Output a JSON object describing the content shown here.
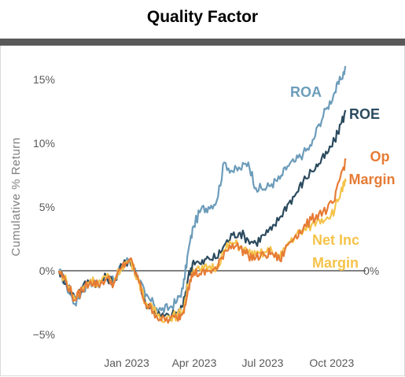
{
  "title": "Quality Factor",
  "chart_data": {
    "type": "line",
    "title": "Quality Factor",
    "ylabel": "Cumulative % Return",
    "xlabel": "",
    "x_start": "2022-10-03",
    "x_end": "2023-10-20",
    "x_ticks": [
      {
        "date": "2023-01-01",
        "label": "Jan 2023"
      },
      {
        "date": "2023-04-01",
        "label": "Apr 2023"
      },
      {
        "date": "2023-07-01",
        "label": "Jul 2023"
      },
      {
        "date": "2023-10-01",
        "label": "Oct 2023"
      }
    ],
    "y_ticks": [
      {
        "value": -5,
        "label": "−5%"
      },
      {
        "value": 0,
        "label": "0%"
      },
      {
        "value": 5,
        "label": "5%"
      },
      {
        "value": 10,
        "label": "10%"
      },
      {
        "value": 15,
        "label": "15%"
      }
    ],
    "ylim": [
      -5.6,
      16.5
    ],
    "zero_line_label": "0%",
    "grid": false,
    "series": [
      {
        "name": "ROA",
        "color": "#6c9cba",
        "points": [
          [
            "2022-10-03",
            0
          ],
          [
            "2022-10-13",
            -1.2
          ],
          [
            "2022-10-24",
            -2.6
          ],
          [
            "2022-11-03",
            -1.6
          ],
          [
            "2022-11-14",
            -0.8
          ],
          [
            "2022-11-24",
            -1.2
          ],
          [
            "2022-12-05",
            -0.4
          ],
          [
            "2022-12-15",
            -0.9
          ],
          [
            "2022-12-26",
            0.5
          ],
          [
            "2023-01-05",
            0.9
          ],
          [
            "2023-01-16",
            -0.4
          ],
          [
            "2023-01-26",
            -2.0
          ],
          [
            "2023-02-06",
            -2.6
          ],
          [
            "2023-02-16",
            -3.1
          ],
          [
            "2023-02-27",
            -2.9
          ],
          [
            "2023-03-09",
            -2.4
          ],
          [
            "2023-03-17",
            -1.4
          ],
          [
            "2023-03-24",
            1.5
          ],
          [
            "2023-03-31",
            3.5
          ],
          [
            "2023-04-10",
            4.8
          ],
          [
            "2023-04-20",
            5.0
          ],
          [
            "2023-05-01",
            5.5
          ],
          [
            "2023-05-11",
            8.5
          ],
          [
            "2023-05-22",
            7.8
          ],
          [
            "2023-06-01",
            8.0
          ],
          [
            "2023-06-12",
            8.5
          ],
          [
            "2023-06-22",
            6.5
          ],
          [
            "2023-07-03",
            6.4
          ],
          [
            "2023-07-13",
            6.8
          ],
          [
            "2023-07-24",
            7.2
          ],
          [
            "2023-08-03",
            8.2
          ],
          [
            "2023-08-14",
            8.6
          ],
          [
            "2023-08-24",
            9.2
          ],
          [
            "2023-09-04",
            9.8
          ],
          [
            "2023-09-14",
            11.5
          ],
          [
            "2023-09-25",
            12.8
          ],
          [
            "2023-10-05",
            14.0
          ],
          [
            "2023-10-13",
            15.0
          ],
          [
            "2023-10-20",
            16.0
          ]
        ]
      },
      {
        "name": "ROE",
        "color": "#2b4a5e",
        "points": [
          [
            "2022-10-03",
            0
          ],
          [
            "2022-10-13",
            -1.0
          ],
          [
            "2022-10-24",
            -2.1
          ],
          [
            "2022-11-03",
            -1.3
          ],
          [
            "2022-11-14",
            -0.7
          ],
          [
            "2022-11-24",
            -1.0
          ],
          [
            "2022-12-05",
            -0.5
          ],
          [
            "2022-12-15",
            -0.9
          ],
          [
            "2022-12-26",
            0.4
          ],
          [
            "2023-01-05",
            0.9
          ],
          [
            "2023-01-16",
            -0.5
          ],
          [
            "2023-01-26",
            -2.5
          ],
          [
            "2023-02-06",
            -3.0
          ],
          [
            "2023-02-16",
            -3.6
          ],
          [
            "2023-02-27",
            -3.6
          ],
          [
            "2023-03-09",
            -3.3
          ],
          [
            "2023-03-17",
            -2.8
          ],
          [
            "2023-03-24",
            -0.5
          ],
          [
            "2023-03-31",
            0.8
          ],
          [
            "2023-04-10",
            0.5
          ],
          [
            "2023-04-20",
            1.0
          ],
          [
            "2023-05-01",
            1.0
          ],
          [
            "2023-05-11",
            2.0
          ],
          [
            "2023-05-22",
            2.8
          ],
          [
            "2023-06-01",
            3.0
          ],
          [
            "2023-06-12",
            2.4
          ],
          [
            "2023-06-22",
            2.2
          ],
          [
            "2023-07-03",
            2.8
          ],
          [
            "2023-07-13",
            3.2
          ],
          [
            "2023-07-24",
            4.2
          ],
          [
            "2023-08-03",
            5.2
          ],
          [
            "2023-08-14",
            6.0
          ],
          [
            "2023-08-24",
            7.0
          ],
          [
            "2023-09-04",
            7.8
          ],
          [
            "2023-09-14",
            8.4
          ],
          [
            "2023-09-25",
            9.2
          ],
          [
            "2023-10-05",
            10.2
          ],
          [
            "2023-10-13",
            11.5
          ],
          [
            "2023-10-20",
            12.5
          ]
        ]
      },
      {
        "name": "Op Margin",
        "color": "#e67b35",
        "points": [
          [
            "2022-10-03",
            0
          ],
          [
            "2022-10-13",
            -0.9
          ],
          [
            "2022-10-24",
            -2.3
          ],
          [
            "2022-11-03",
            -1.5
          ],
          [
            "2022-11-14",
            -0.8
          ],
          [
            "2022-11-24",
            -1.1
          ],
          [
            "2022-12-05",
            -0.6
          ],
          [
            "2022-12-15",
            -1.0
          ],
          [
            "2022-12-26",
            0.3
          ],
          [
            "2023-01-05",
            0.9
          ],
          [
            "2023-01-16",
            -0.6
          ],
          [
            "2023-01-26",
            -2.6
          ],
          [
            "2023-02-06",
            -3.2
          ],
          [
            "2023-02-16",
            -3.9
          ],
          [
            "2023-02-27",
            -3.8
          ],
          [
            "2023-03-09",
            -3.7
          ],
          [
            "2023-03-17",
            -3.3
          ],
          [
            "2023-03-24",
            -1.3
          ],
          [
            "2023-03-31",
            -0.1
          ],
          [
            "2023-04-10",
            -0.3
          ],
          [
            "2023-04-20",
            0.0
          ],
          [
            "2023-05-01",
            0.1
          ],
          [
            "2023-05-11",
            1.5
          ],
          [
            "2023-05-22",
            2.1
          ],
          [
            "2023-06-01",
            1.8
          ],
          [
            "2023-06-12",
            1.2
          ],
          [
            "2023-06-22",
            1.0
          ],
          [
            "2023-07-03",
            1.2
          ],
          [
            "2023-07-13",
            1.4
          ],
          [
            "2023-07-24",
            0.8
          ],
          [
            "2023-08-03",
            2.0
          ],
          [
            "2023-08-14",
            2.8
          ],
          [
            "2023-08-24",
            3.3
          ],
          [
            "2023-09-04",
            4.0
          ],
          [
            "2023-09-14",
            4.5
          ],
          [
            "2023-09-25",
            4.8
          ],
          [
            "2023-10-05",
            5.5
          ],
          [
            "2023-10-13",
            7.5
          ],
          [
            "2023-10-20",
            8.7
          ]
        ]
      },
      {
        "name": "Net Inc Margin",
        "color": "#f5c34a",
        "points": [
          [
            "2022-10-03",
            0
          ],
          [
            "2022-10-13",
            -0.8
          ],
          [
            "2022-10-24",
            -2.2
          ],
          [
            "2022-11-03",
            -1.4
          ],
          [
            "2022-11-14",
            -0.7
          ],
          [
            "2022-11-24",
            -1.0
          ],
          [
            "2022-12-05",
            -0.5
          ],
          [
            "2022-12-15",
            -0.9
          ],
          [
            "2022-12-26",
            0.4
          ],
          [
            "2023-01-05",
            0.8
          ],
          [
            "2023-01-16",
            -0.5
          ],
          [
            "2023-01-26",
            -2.5
          ],
          [
            "2023-02-06",
            -3.1
          ],
          [
            "2023-02-16",
            -3.7
          ],
          [
            "2023-02-27",
            -3.6
          ],
          [
            "2023-03-09",
            -3.5
          ],
          [
            "2023-03-17",
            -3.1
          ],
          [
            "2023-03-24",
            -1.1
          ],
          [
            "2023-03-31",
            0.1
          ],
          [
            "2023-04-10",
            0.0
          ],
          [
            "2023-04-20",
            0.3
          ],
          [
            "2023-05-01",
            0.3
          ],
          [
            "2023-05-11",
            1.6
          ],
          [
            "2023-05-22",
            2.2
          ],
          [
            "2023-06-01",
            1.9
          ],
          [
            "2023-06-12",
            1.4
          ],
          [
            "2023-06-22",
            1.2
          ],
          [
            "2023-07-03",
            1.4
          ],
          [
            "2023-07-13",
            1.6
          ],
          [
            "2023-07-24",
            1.0
          ],
          [
            "2023-08-03",
            2.1
          ],
          [
            "2023-08-14",
            2.8
          ],
          [
            "2023-08-24",
            3.1
          ],
          [
            "2023-09-04",
            3.6
          ],
          [
            "2023-09-14",
            4.0
          ],
          [
            "2023-09-25",
            4.2
          ],
          [
            "2023-10-05",
            4.8
          ],
          [
            "2023-10-13",
            6.2
          ],
          [
            "2023-10-20",
            7.0
          ]
        ]
      }
    ]
  }
}
